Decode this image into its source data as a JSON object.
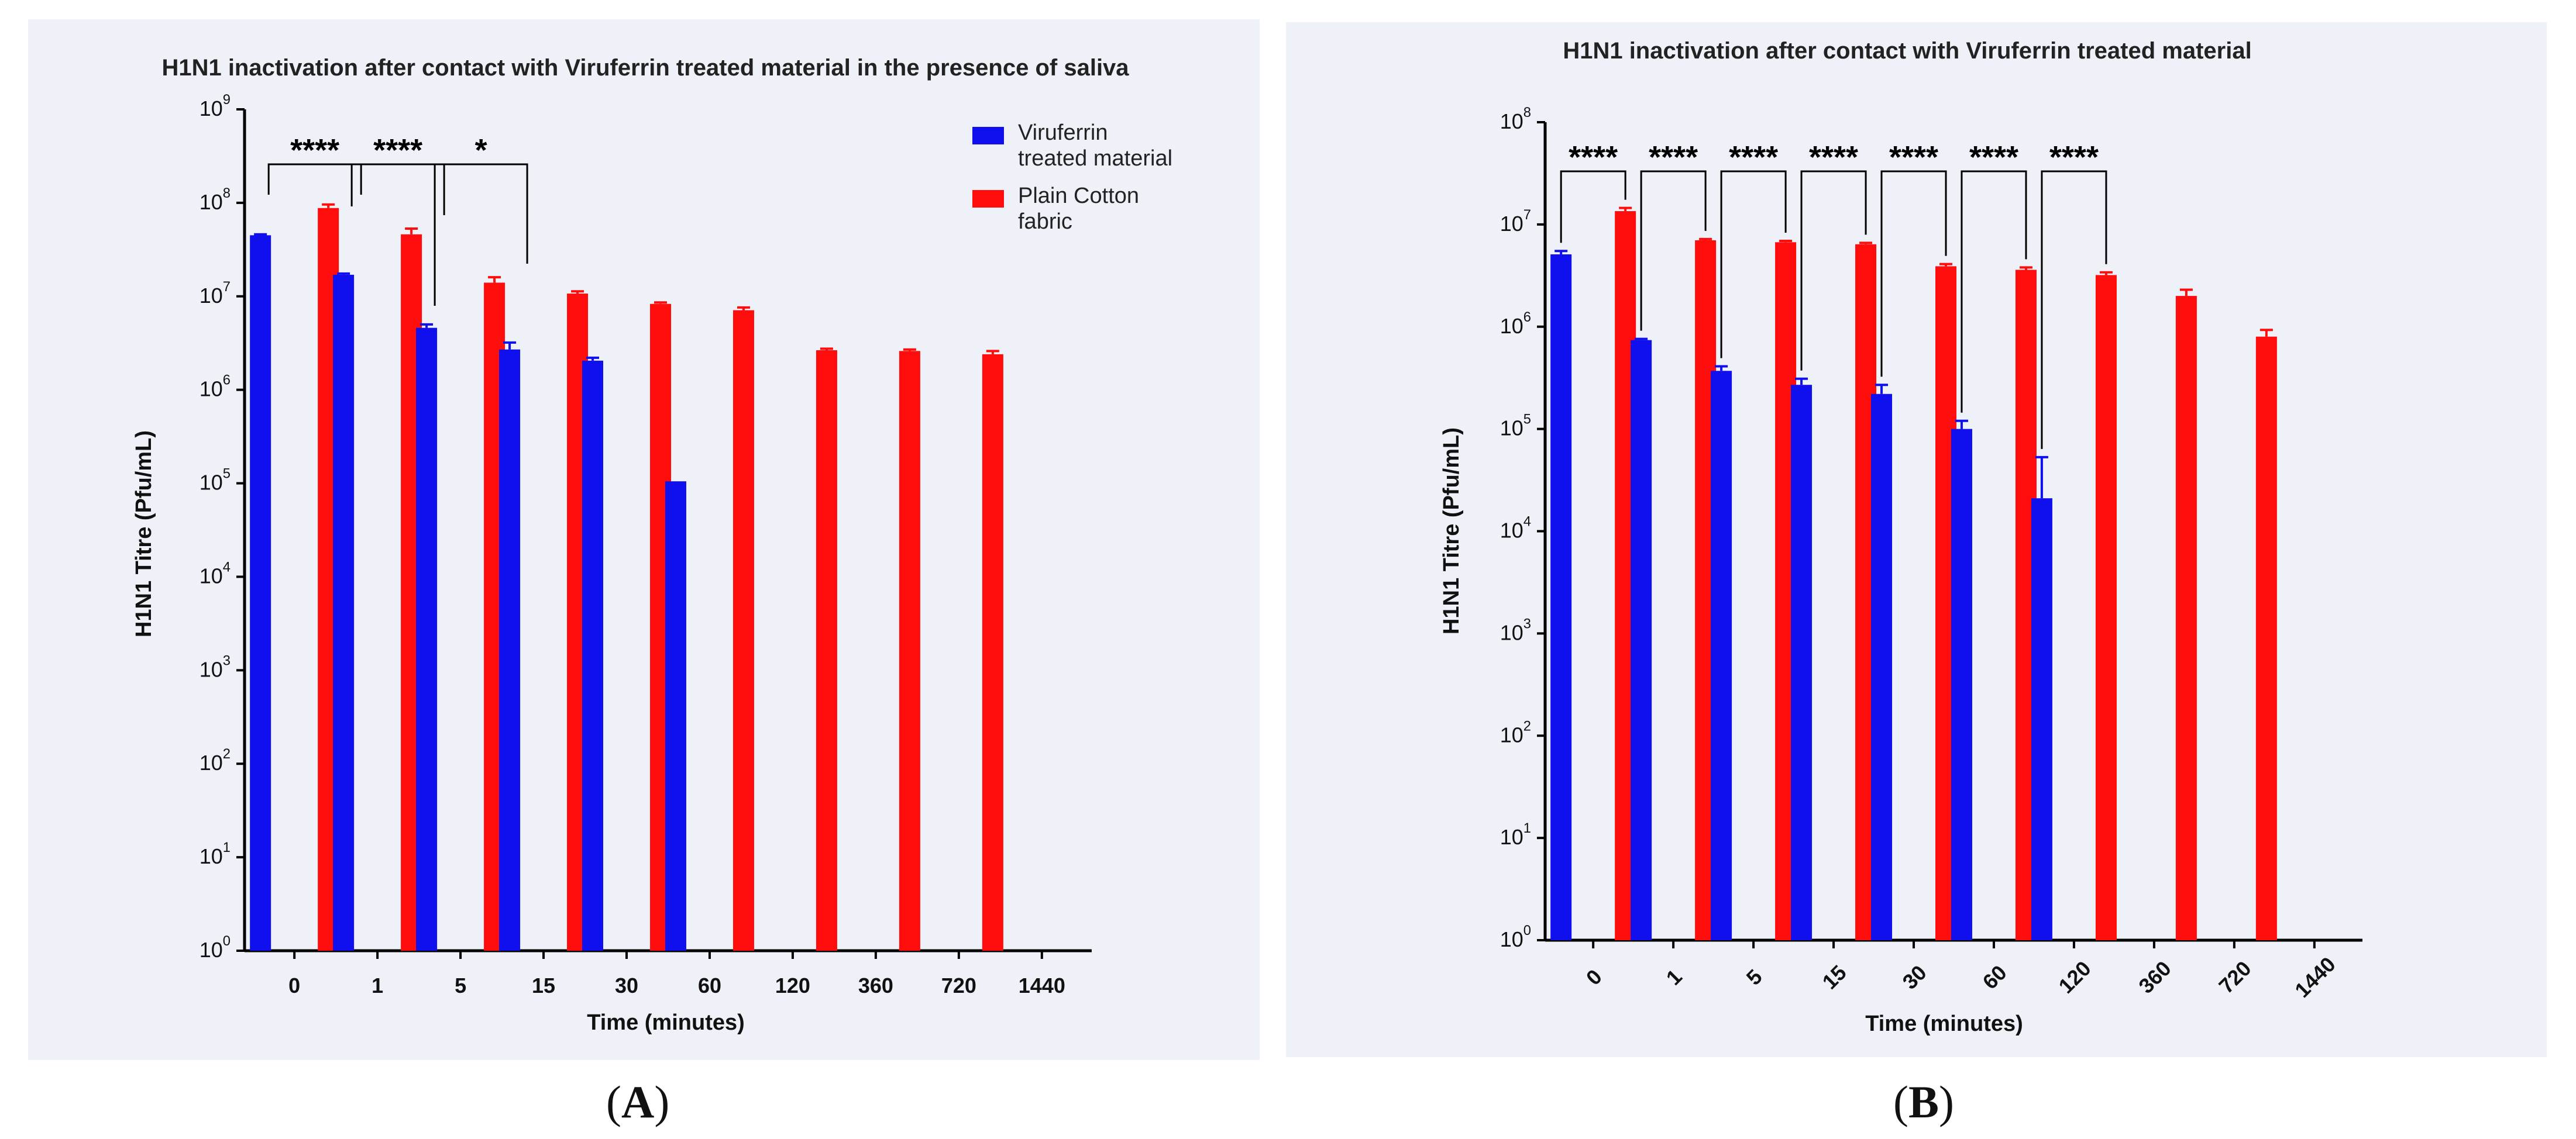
{
  "chart_data": [
    {
      "type": "bar",
      "scale": "log",
      "title": "H1N1 inactivation after contact with Viruferrin treated material in the presence of saliva",
      "xlabel": "Time (minutes)",
      "ylabel": "H1N1 Titre (Pfu/mL)",
      "ylim_exponents": [
        0,
        9
      ],
      "categories": [
        "0",
        "1",
        "5",
        "15",
        "30",
        "60",
        "120",
        "360",
        "720",
        "1440"
      ],
      "series": [
        {
          "name": "Viruferrin treated material",
          "color": "#1010ee",
          "values": [
            45000000,
            17000000,
            4600000,
            2700000,
            2050000,
            105000,
            null,
            null,
            null,
            null
          ],
          "errors": [
            1000000,
            500000,
            400000,
            500000,
            150000,
            null,
            null,
            null,
            null,
            null
          ]
        },
        {
          "name": "Plain Cotton fabric",
          "color": "#ff0d0d",
          "values": [
            88000000,
            46000000,
            14000000,
            10700000,
            8300000,
            7100000,
            2650000,
            2600000,
            2400000,
            null
          ],
          "errors": [
            8000000,
            7000000,
            2000000,
            600000,
            300000,
            500000,
            100000,
            100000,
            200000,
            null
          ]
        }
      ],
      "legend": [
        "Viruferrin treated material",
        "Plain Cotton fabric"
      ],
      "legend_position": "top-right",
      "significance": [
        {
          "label": "****",
          "category": 0
        },
        {
          "label": "****",
          "category": 1
        },
        {
          "label": "*",
          "category": 2
        }
      ]
    },
    {
      "type": "bar",
      "scale": "log",
      "title": "H1N1 inactivation after contact with Viruferrin treated material",
      "xlabel": "Time (minutes)",
      "ylabel": "H1N1 Titre (Pfu/mL)",
      "ylim_exponents": [
        0,
        8
      ],
      "categories": [
        "0",
        "1",
        "5",
        "15",
        "30",
        "60",
        "120",
        "360",
        "720",
        "1440"
      ],
      "series": [
        {
          "name": "Viruferrin treated material",
          "color": "#1010ee",
          "values": [
            5100000,
            740000,
            370000,
            270000,
            220000,
            100000,
            21000,
            null,
            null,
            null
          ],
          "errors": [
            400000,
            20000,
            40000,
            40000,
            50000,
            20000,
            32000,
            null,
            null,
            null
          ]
        },
        {
          "name": "Plain Cotton fabric",
          "color": "#ff0d0d",
          "values": [
            13500000,
            7000000,
            6700000,
            6400000,
            3900000,
            3600000,
            3200000,
            2000000,
            800000,
            null
          ],
          "errors": [
            1000000,
            200000,
            200000,
            200000,
            200000,
            200000,
            200000,
            300000,
            130000,
            null
          ]
        }
      ],
      "significance": [
        {
          "label": "****",
          "category": 0
        },
        {
          "label": "****",
          "category": 1
        },
        {
          "label": "****",
          "category": 2
        },
        {
          "label": "****",
          "category": 3
        },
        {
          "label": "****",
          "category": 4
        },
        {
          "label": "****",
          "category": 5
        },
        {
          "label": "****",
          "category": 6
        }
      ]
    }
  ],
  "captions": [
    "A",
    "B"
  ]
}
